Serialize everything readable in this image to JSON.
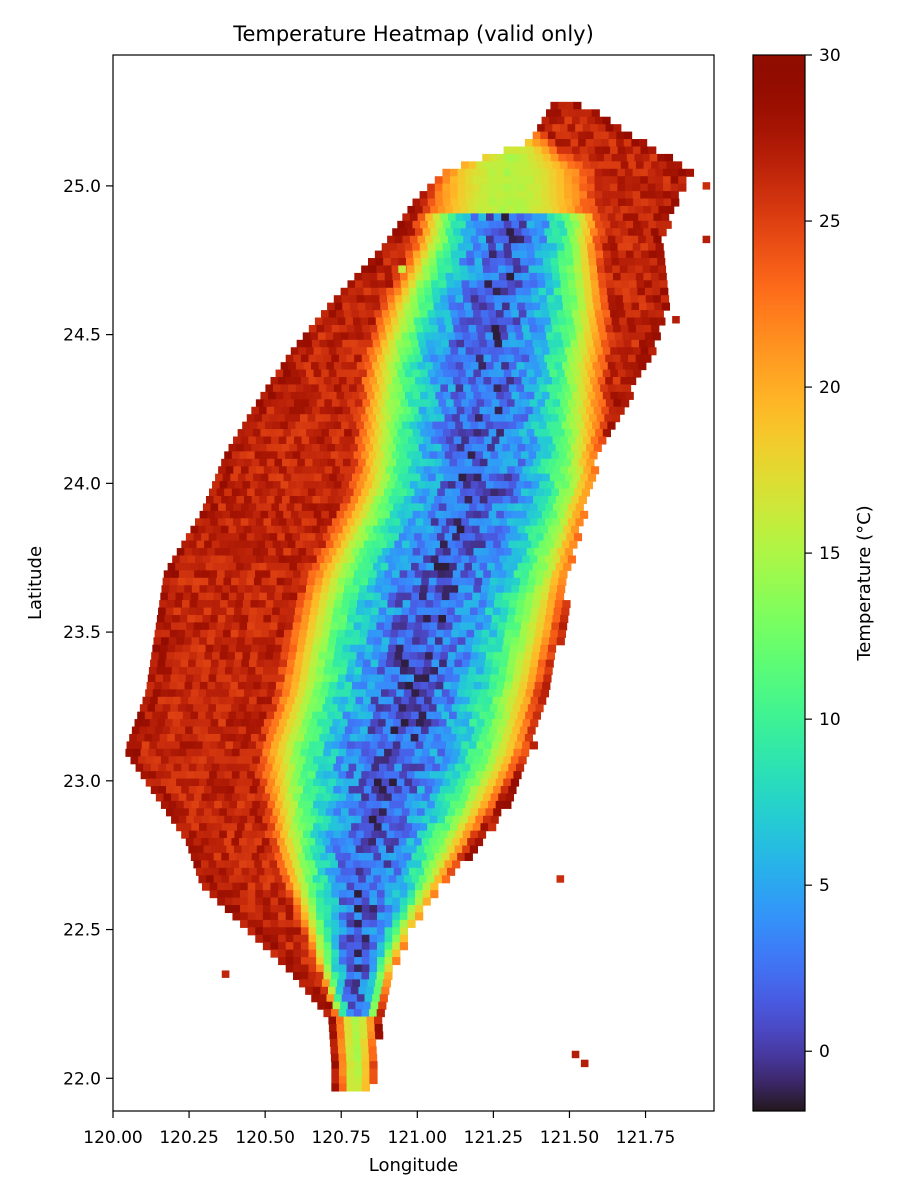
{
  "chart_data": {
    "type": "heatmap",
    "title": "Temperature Heatmap (valid only)",
    "xlabel": "Longitude",
    "ylabel": "Latitude",
    "colorbar_label": "Temperature (°C)",
    "xlim": [
      120.0,
      121.975
    ],
    "ylim": [
      21.89,
      25.44
    ],
    "x_ticks": [
      120.0,
      120.25,
      120.5,
      120.75,
      121.0,
      121.25,
      121.5,
      121.75
    ],
    "x_tick_labels": [
      "120.00",
      "120.25",
      "120.50",
      "120.75",
      "121.00",
      "121.25",
      "121.50",
      "121.75"
    ],
    "y_ticks": [
      22.0,
      22.5,
      23.0,
      23.5,
      24.0,
      24.5,
      25.0
    ],
    "y_tick_labels": [
      "22.0",
      "22.5",
      "23.0",
      "23.5",
      "24.0",
      "24.5",
      "25.0"
    ],
    "colorbar_range": [
      -1.8,
      30
    ],
    "colorbar_ticks": [
      0,
      5,
      10,
      15,
      20,
      25,
      30
    ],
    "colorbar_tick_labels": [
      "0",
      "5",
      "10",
      "15",
      "20",
      "25",
      "30"
    ],
    "colormap": "turbo",
    "grid_resolution_deg": 0.025,
    "grid": false,
    "land_mask_outline": [
      [
        25.27,
        121.45,
        121.55
      ],
      [
        25.15,
        121.38,
        121.75
      ],
      [
        25.05,
        121.1,
        121.9
      ],
      [
        24.95,
        121.0,
        121.85
      ],
      [
        24.8,
        120.9,
        121.8
      ],
      [
        24.6,
        120.72,
        121.82
      ],
      [
        24.45,
        120.6,
        121.78
      ],
      [
        24.3,
        120.5,
        121.7
      ],
      [
        24.1,
        120.38,
        121.6
      ],
      [
        23.9,
        120.3,
        121.55
      ],
      [
        23.7,
        120.18,
        121.5
      ],
      [
        23.5,
        120.15,
        121.48
      ],
      [
        23.3,
        120.12,
        121.42
      ],
      [
        23.1,
        120.05,
        121.38
      ],
      [
        22.95,
        120.15,
        121.32
      ],
      [
        22.8,
        120.25,
        121.22
      ],
      [
        22.65,
        120.3,
        121.08
      ],
      [
        22.5,
        120.45,
        120.98
      ],
      [
        22.35,
        120.6,
        120.92
      ],
      [
        22.2,
        120.72,
        120.88
      ],
      [
        22.05,
        120.73,
        120.87
      ],
      [
        21.97,
        120.73,
        120.85
      ]
    ],
    "ridge_axis": [
      [
        24.85,
        121.3
      ],
      [
        24.4,
        121.22
      ],
      [
        24.0,
        121.2
      ],
      [
        23.6,
        121.05
      ],
      [
        23.2,
        120.95
      ],
      [
        22.8,
        120.85
      ],
      [
        22.4,
        120.8
      ],
      [
        22.05,
        120.8
      ]
    ],
    "coastal_temp_c": 26.5,
    "min_peak_temp_c": -1.5,
    "isolated_cells": [
      [
        24.72,
        120.95,
        16
      ],
      [
        24.82,
        121.95,
        27
      ],
      [
        22.67,
        121.47,
        26
      ],
      [
        22.35,
        120.37,
        26.5
      ],
      [
        22.08,
        121.52,
        27
      ],
      [
        22.05,
        121.55,
        27
      ],
      [
        25.0,
        121.95,
        26
      ],
      [
        24.55,
        121.85,
        27
      ]
    ]
  }
}
